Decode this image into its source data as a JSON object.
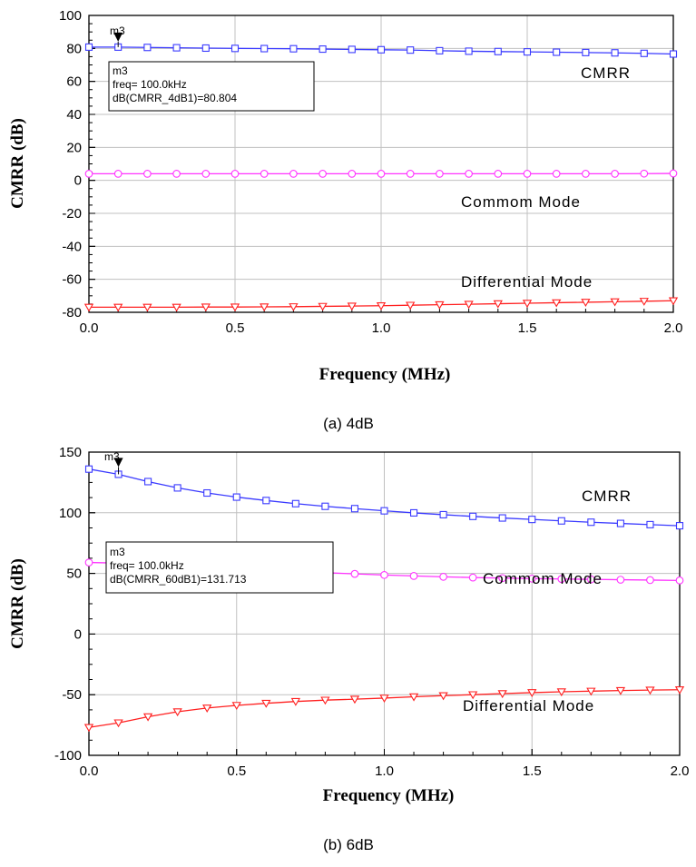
{
  "chart_data": [
    {
      "type": "line",
      "caption": "(a) 4dB",
      "xlabel": "Frequency (MHz)",
      "ylabel": "CMRR (dB)",
      "xlim": [
        0,
        2
      ],
      "ylim": [
        -80,
        100
      ],
      "x_ticks": [
        "0.0",
        "0.5",
        "1.0",
        "1.5",
        "2.0"
      ],
      "y_ticks": [
        "100",
        "80",
        "60",
        "40",
        "20",
        "0",
        "-20",
        "-40",
        "-60",
        "-80"
      ],
      "grid": true,
      "x": [
        0.0,
        0.1,
        0.2,
        0.3,
        0.4,
        0.5,
        0.6,
        0.7,
        0.8,
        0.9,
        1.0,
        1.1,
        1.2,
        1.3,
        1.4,
        1.5,
        1.6,
        1.7,
        1.8,
        1.9,
        2.0
      ],
      "series": [
        {
          "name": "CMRR",
          "color": "#3a3aff",
          "marker": "square",
          "values": [
            80.8,
            80.8,
            80.6,
            80.4,
            80.2,
            80.0,
            79.9,
            79.8,
            79.6,
            79.4,
            79.2,
            79.0,
            78.6,
            78.3,
            78.1,
            77.9,
            77.7,
            77.5,
            77.3,
            77.0,
            76.6
          ]
        },
        {
          "name": "Commom Mode",
          "color": "#ff33ff",
          "marker": "circle",
          "values": [
            4.0,
            4.0,
            4.0,
            4.0,
            4.0,
            4.0,
            4.0,
            4.0,
            4.0,
            4.0,
            4.0,
            4.0,
            4.0,
            4.0,
            4.0,
            4.0,
            4.0,
            4.0,
            4.0,
            4.1,
            4.2
          ]
        },
        {
          "name": "Differential Mode",
          "color": "#ff2020",
          "marker": "triangle-down",
          "values": [
            -76.9,
            -76.9,
            -76.9,
            -76.9,
            -76.8,
            -76.8,
            -76.7,
            -76.6,
            -76.4,
            -76.2,
            -76.0,
            -75.7,
            -75.4,
            -75.1,
            -74.8,
            -74.5,
            -74.2,
            -73.9,
            -73.6,
            -73.3,
            -73.0
          ]
        }
      ],
      "marker": {
        "name": "m3",
        "x": 0.1,
        "y": 80.804,
        "annotation": [
          "m3",
          "freq= 100.0kHz",
          "dB(CMRR_4dB1)=80.804"
        ]
      }
    },
    {
      "type": "line",
      "caption": "(b) 6dB",
      "xlabel": "Frequency (MHz)",
      "ylabel": "CMRR (dB)",
      "xlim": [
        0,
        2
      ],
      "ylim": [
        -100,
        150
      ],
      "x_ticks": [
        "0.0",
        "0.5",
        "1.0",
        "1.5",
        "2.0"
      ],
      "y_ticks": [
        "150",
        "100",
        "50",
        "0",
        "-50",
        "-100"
      ],
      "grid": true,
      "x": [
        0.0,
        0.1,
        0.2,
        0.3,
        0.4,
        0.5,
        0.6,
        0.7,
        0.8,
        0.9,
        1.0,
        1.1,
        1.2,
        1.3,
        1.4,
        1.5,
        1.6,
        1.7,
        1.8,
        1.9,
        2.0
      ],
      "series": [
        {
          "name": "CMRR",
          "color": "#3a3aff",
          "marker": "square",
          "values": [
            136.0,
            131.7,
            125.7,
            120.5,
            116.3,
            112.9,
            110.1,
            107.5,
            105.3,
            103.4,
            101.6,
            99.9,
            98.4,
            97.0,
            95.7,
            94.5,
            93.3,
            92.2,
            91.2,
            90.2,
            89.3
          ]
        },
        {
          "name": "Commom Mode",
          "color": "#ff33ff",
          "marker": "circle",
          "values": [
            59.0,
            58.5,
            57.4,
            56.3,
            55.2,
            54.0,
            52.9,
            51.7,
            50.6,
            49.6,
            48.7,
            47.9,
            47.2,
            46.6,
            46.1,
            45.7,
            45.4,
            45.1,
            44.8,
            44.5,
            44.2
          ]
        },
        {
          "name": "Differential Mode",
          "color": "#ff2020",
          "marker": "triangle-down",
          "values": [
            -77.0,
            -73.2,
            -68.2,
            -64.1,
            -61.0,
            -58.8,
            -57.1,
            -55.6,
            -54.5,
            -53.7,
            -52.8,
            -51.7,
            -50.8,
            -50.0,
            -49.1,
            -48.3,
            -47.6,
            -47.1,
            -46.6,
            -46.2,
            -45.9
          ]
        }
      ],
      "marker": {
        "name": "m3",
        "x": 0.1,
        "y": 131.713,
        "annotation": [
          "m3",
          "freq= 100.0kHz",
          "dB(CMRR_60dB1)=131.713"
        ]
      }
    }
  ]
}
